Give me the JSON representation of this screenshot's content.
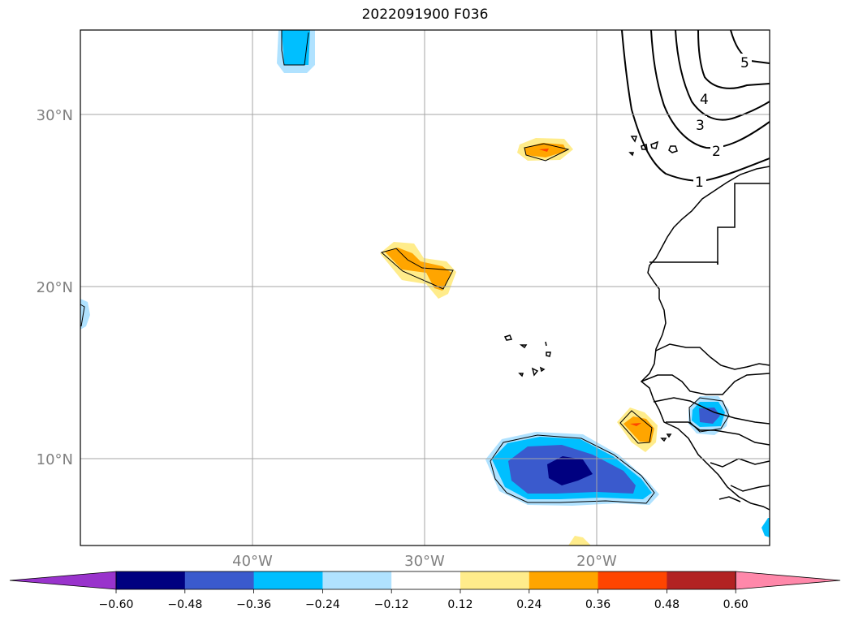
{
  "title": "2022091900 F036",
  "map": {
    "lat_labels": [
      "30°N",
      "20°N",
      "10°N"
    ],
    "lon_labels": [
      "40°W",
      "30°W",
      "20°W"
    ],
    "contour_labels": [
      "5",
      "4",
      "3",
      "2",
      "1"
    ]
  },
  "colorbar": {
    "ticks": [
      "−0.60",
      "−0.48",
      "−0.36",
      "−0.24",
      "−0.12",
      "0.12",
      "0.24",
      "0.36",
      "0.48",
      "0.60"
    ],
    "colors": [
      "#9933cc",
      "#000080",
      "#3a5acd",
      "#00bfff",
      "#b0e2ff",
      "#ffffff",
      "#ffec8b",
      "#ffa500",
      "#ff4500",
      "#b22222",
      "#ff88aa"
    ]
  }
}
